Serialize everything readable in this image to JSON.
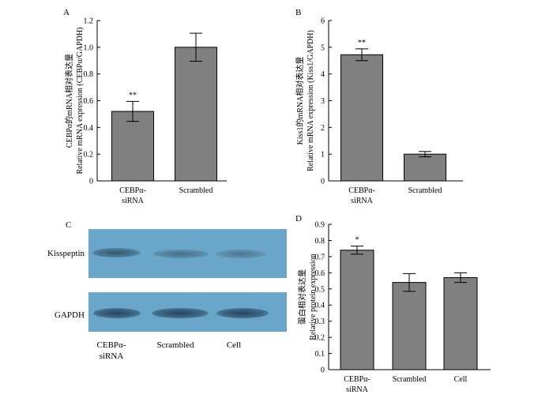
{
  "figure": {
    "panel_letters": [
      "A",
      "B",
      "C",
      "D"
    ],
    "blot": {
      "rows": [
        "Kisspeptin",
        "GAPDH"
      ],
      "lanes": [
        "CEBPα-\nsiRNA",
        "Scrambled",
        "Cell"
      ]
    }
  },
  "chart_data": [
    {
      "panel": "A",
      "type": "bar",
      "ylabel": "CEBPα的mRNA相对表达量\nRelative mRNA expression (CEBPα/GAPDH)",
      "categories": [
        "CEBPα-\nsiRNA",
        "Scrambled"
      ],
      "values": [
        0.52,
        1.0
      ],
      "errors": [
        0.075,
        0.105
      ],
      "annotations": [
        "**",
        ""
      ],
      "ylim": [
        0,
        1.2
      ],
      "yticks": [
        "0",
        "0.2",
        "0.4",
        "0.6",
        "0.8",
        "1.0",
        "1.2"
      ],
      "bar_color": "#808080"
    },
    {
      "panel": "B",
      "type": "bar",
      "ylabel": "Kiss1的mRNA相对表达量\nRelative mRNA expression (Kiss1/GAPDH)",
      "categories": [
        "CEBPα-\nsiRNA",
        "Scrambled"
      ],
      "values": [
        4.72,
        1.0
      ],
      "errors": [
        0.22,
        0.1
      ],
      "annotations": [
        "**",
        ""
      ],
      "ylim": [
        0,
        6
      ],
      "yticks": [
        "0",
        "1",
        "2",
        "3",
        "4",
        "5",
        "6"
      ],
      "bar_color": "#808080"
    },
    {
      "panel": "D",
      "type": "bar",
      "ylabel": "蛋白相对表达量\nRelative protein expression",
      "categories": [
        "CEBPα-\nsiRNA",
        "Scrambled",
        "Cell"
      ],
      "values": [
        0.74,
        0.54,
        0.57
      ],
      "errors": [
        0.025,
        0.055,
        0.03
      ],
      "annotations": [
        "*",
        "",
        ""
      ],
      "ylim": [
        0,
        0.9
      ],
      "yticks": [
        "0",
        "0.1",
        "0.2",
        "0.3",
        "0.4",
        "0.5",
        "0.6",
        "0.7",
        "0.8",
        "0.9"
      ],
      "bar_color": "#808080"
    }
  ]
}
